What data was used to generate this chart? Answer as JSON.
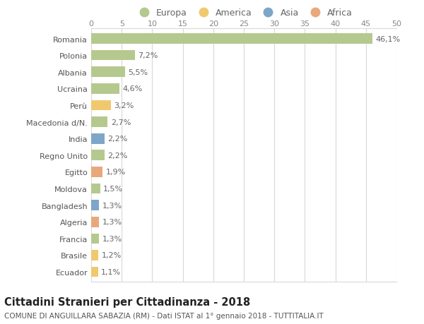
{
  "categories": [
    "Romania",
    "Polonia",
    "Albania",
    "Ucraina",
    "Perù",
    "Macedonia d/N.",
    "India",
    "Regno Unito",
    "Egitto",
    "Moldova",
    "Bangladesh",
    "Algeria",
    "Francia",
    "Brasile",
    "Ecuador"
  ],
  "values": [
    46.1,
    7.2,
    5.5,
    4.6,
    3.2,
    2.7,
    2.2,
    2.2,
    1.9,
    1.5,
    1.3,
    1.3,
    1.3,
    1.2,
    1.1
  ],
  "labels": [
    "46,1%",
    "7,2%",
    "5,5%",
    "4,6%",
    "3,2%",
    "2,7%",
    "2,2%",
    "2,2%",
    "1,9%",
    "1,5%",
    "1,3%",
    "1,3%",
    "1,3%",
    "1,2%",
    "1,1%"
  ],
  "continents": [
    "Europa",
    "Europa",
    "Europa",
    "Europa",
    "America",
    "Europa",
    "Asia",
    "Europa",
    "Africa",
    "Europa",
    "Asia",
    "Africa",
    "Europa",
    "America",
    "America"
  ],
  "continent_colors": {
    "Europa": "#b5c98e",
    "America": "#f0c96e",
    "Asia": "#7ea6c8",
    "Africa": "#e8a87c"
  },
  "legend_order": [
    "Europa",
    "America",
    "Asia",
    "Africa"
  ],
  "title1": "Cittadini Stranieri per Cittadinanza - 2018",
  "title2": "COMUNE DI ANGUILLARA SABAZIA (RM) - Dati ISTAT al 1° gennaio 2018 - TUTTITALIA.IT",
  "xlim": [
    0,
    50
  ],
  "xticks": [
    0,
    5,
    10,
    15,
    20,
    25,
    30,
    35,
    40,
    45,
    50
  ],
  "background_color": "#ffffff",
  "grid_color": "#d8d8d8",
  "bar_height": 0.62,
  "label_fontsize": 8.0,
  "tick_fontsize": 8.0,
  "title1_fontsize": 10.5,
  "title2_fontsize": 7.5
}
